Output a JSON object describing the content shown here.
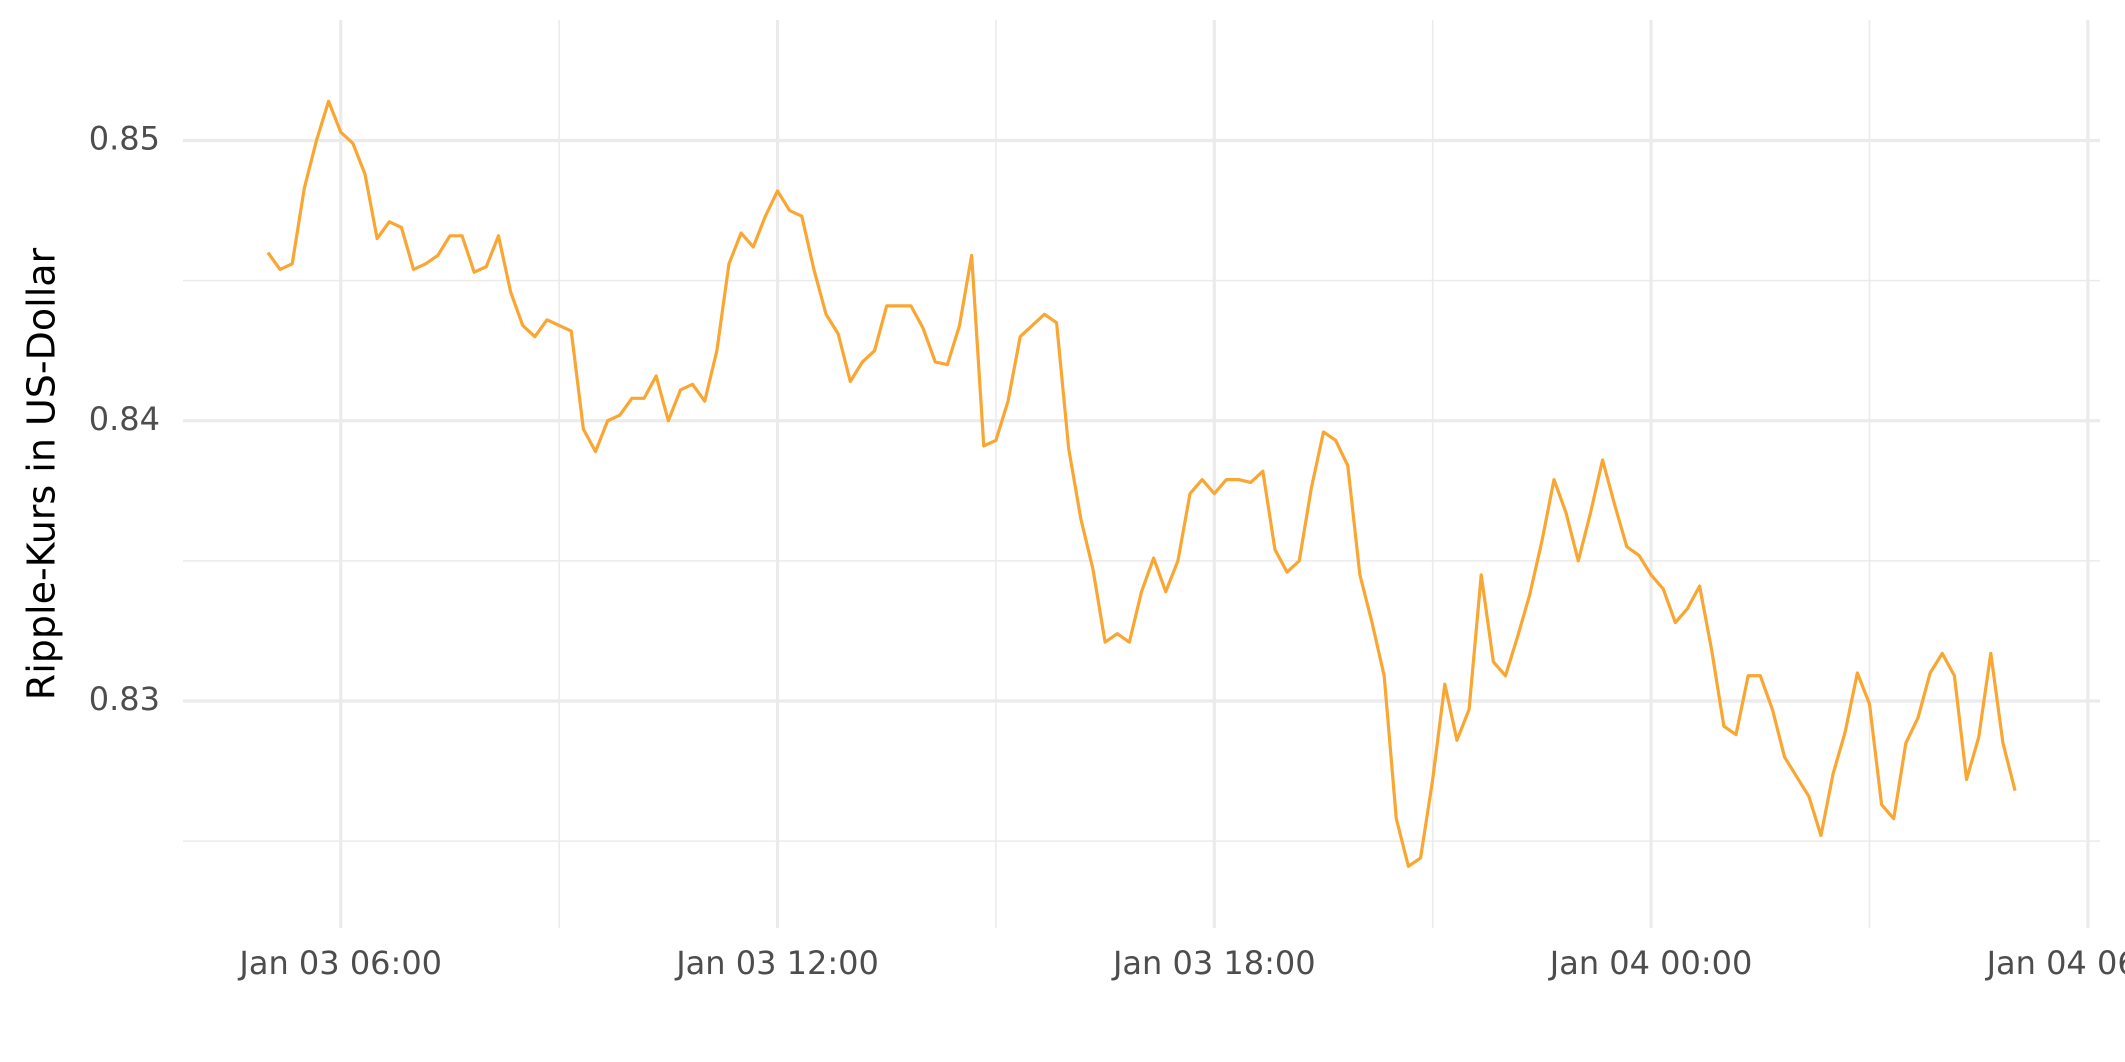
{
  "chart_data": {
    "type": "line",
    "y_label": "Ripple-Kurs in US-Dollar",
    "color": "#f9a632",
    "x": [
      "Jan 03 05:00",
      "Jan 03 05:10",
      "Jan 03 05:20",
      "Jan 03 05:30",
      "Jan 03 05:40",
      "Jan 03 05:50",
      "Jan 03 06:00",
      "Jan 03 06:10",
      "Jan 03 06:20",
      "Jan 03 06:30",
      "Jan 03 06:40",
      "Jan 03 06:50",
      "Jan 03 07:00",
      "Jan 03 07:10",
      "Jan 03 07:20",
      "Jan 03 07:30",
      "Jan 03 07:40",
      "Jan 03 07:50",
      "Jan 03 08:00",
      "Jan 03 08:10",
      "Jan 03 08:20",
      "Jan 03 08:30",
      "Jan 03 08:40",
      "Jan 03 08:50",
      "Jan 03 09:00",
      "Jan 03 09:10",
      "Jan 03 09:20",
      "Jan 03 09:30",
      "Jan 03 09:40",
      "Jan 03 09:50",
      "Jan 03 10:00",
      "Jan 03 10:10",
      "Jan 03 10:20",
      "Jan 03 10:30",
      "Jan 03 10:40",
      "Jan 03 10:50",
      "Jan 03 11:00",
      "Jan 03 11:10",
      "Jan 03 11:20",
      "Jan 03 11:30",
      "Jan 03 11:40",
      "Jan 03 11:50",
      "Jan 03 12:00",
      "Jan 03 12:10",
      "Jan 03 12:20",
      "Jan 03 12:30",
      "Jan 03 12:40",
      "Jan 03 12:50",
      "Jan 03 13:00",
      "Jan 03 13:10",
      "Jan 03 13:20",
      "Jan 03 13:30",
      "Jan 03 13:40",
      "Jan 03 13:50",
      "Jan 03 14:00",
      "Jan 03 14:10",
      "Jan 03 14:20",
      "Jan 03 14:30",
      "Jan 03 14:40",
      "Jan 03 14:50",
      "Jan 03 15:00",
      "Jan 03 15:10",
      "Jan 03 15:20",
      "Jan 03 15:30",
      "Jan 03 15:40",
      "Jan 03 15:50",
      "Jan 03 16:00",
      "Jan 03 16:10",
      "Jan 03 16:20",
      "Jan 03 16:30",
      "Jan 03 16:40",
      "Jan 03 16:50",
      "Jan 03 17:00",
      "Jan 03 17:10",
      "Jan 03 17:20",
      "Jan 03 17:30",
      "Jan 03 17:40",
      "Jan 03 17:50",
      "Jan 03 18:00",
      "Jan 03 18:10",
      "Jan 03 18:20",
      "Jan 03 18:30",
      "Jan 03 18:40",
      "Jan 03 18:50",
      "Jan 03 19:00",
      "Jan 03 19:10",
      "Jan 03 19:20",
      "Jan 03 19:30",
      "Jan 03 19:40",
      "Jan 03 19:50",
      "Jan 03 20:00",
      "Jan 03 20:10",
      "Jan 03 20:20",
      "Jan 03 20:30",
      "Jan 03 20:40",
      "Jan 03 20:50",
      "Jan 03 21:00",
      "Jan 03 21:10",
      "Jan 03 21:20",
      "Jan 03 21:30",
      "Jan 03 21:40",
      "Jan 03 21:50",
      "Jan 03 22:00",
      "Jan 03 22:10",
      "Jan 03 22:20",
      "Jan 03 22:30",
      "Jan 03 22:40",
      "Jan 03 22:50",
      "Jan 03 23:00",
      "Jan 03 23:10",
      "Jan 03 23:20",
      "Jan 03 23:30",
      "Jan 03 23:40",
      "Jan 03 23:50",
      "Jan 04 00:00",
      "Jan 04 00:10",
      "Jan 04 00:20",
      "Jan 04 00:30",
      "Jan 04 00:40",
      "Jan 04 00:50",
      "Jan 04 01:00",
      "Jan 04 01:10",
      "Jan 04 01:20",
      "Jan 04 01:30",
      "Jan 04 01:40",
      "Jan 04 01:50",
      "Jan 04 02:00",
      "Jan 04 02:10",
      "Jan 04 02:20",
      "Jan 04 02:30",
      "Jan 04 02:40",
      "Jan 04 02:50",
      "Jan 04 03:00",
      "Jan 04 03:10",
      "Jan 04 03:20",
      "Jan 04 03:30",
      "Jan 04 03:40",
      "Jan 04 03:50",
      "Jan 04 04:00",
      "Jan 04 04:10",
      "Jan 04 04:20",
      "Jan 04 04:30",
      "Jan 04 04:40",
      "Jan 04 04:50",
      "Jan 04 05:00"
    ],
    "values": [
      0.846,
      0.8454,
      0.8456,
      0.8483,
      0.85,
      0.8514,
      0.8503,
      0.8499,
      0.8488,
      0.8465,
      0.8471,
      0.8469,
      0.8454,
      0.8456,
      0.8459,
      0.8466,
      0.8466,
      0.8453,
      0.8455,
      0.8466,
      0.8446,
      0.8434,
      0.843,
      0.8436,
      0.8434,
      0.8432,
      0.8397,
      0.8389,
      0.84,
      0.8402,
      0.8408,
      0.8408,
      0.8416,
      0.84,
      0.8411,
      0.8413,
      0.8407,
      0.8425,
      0.8456,
      0.8467,
      0.8462,
      0.8473,
      0.8482,
      0.8475,
      0.8473,
      0.8454,
      0.8438,
      0.8431,
      0.8414,
      0.8421,
      0.8425,
      0.8441,
      0.8441,
      0.8441,
      0.8433,
      0.8421,
      0.842,
      0.8434,
      0.8459,
      0.8391,
      0.8393,
      0.8407,
      0.843,
      0.8434,
      0.8438,
      0.8435,
      0.839,
      0.8365,
      0.8347,
      0.8321,
      0.8324,
      0.8321,
      0.8339,
      0.8351,
      0.8339,
      0.835,
      0.8374,
      0.8379,
      0.8374,
      0.8379,
      0.8379,
      0.8378,
      0.8382,
      0.8354,
      0.8346,
      0.835,
      0.8376,
      0.8396,
      0.8393,
      0.8384,
      0.8345,
      0.8328,
      0.8309,
      0.8258,
      0.8241,
      0.8244,
      0.8272,
      0.8306,
      0.8286,
      0.8297,
      0.8345,
      0.8314,
      0.8309,
      0.8323,
      0.8338,
      0.8357,
      0.8379,
      0.8367,
      0.835,
      0.8367,
      0.8386,
      0.837,
      0.8355,
      0.8352,
      0.8345,
      0.834,
      0.8328,
      0.8333,
      0.8341,
      0.8318,
      0.8291,
      0.8288,
      0.8309,
      0.8309,
      0.8297,
      0.828,
      0.8273,
      0.8266,
      0.8252,
      0.8274,
      0.8289,
      0.831,
      0.8299,
      0.8263,
      0.8258,
      0.8285,
      0.8294,
      0.831,
      0.8317,
      0.8309,
      0.8272,
      0.8287,
      0.8317,
      0.8285,
      0.8268
    ],
    "xlim": [
      "Jan 03 03:50",
      "Jan 04 06:10"
    ],
    "xticks": [
      "Jan 03 06:00",
      "Jan 03 12:00",
      "Jan 03 18:00",
      "Jan 04 00:00",
      "Jan 04 06:00"
    ],
    "xminor": [
      "Jan 03 09:00",
      "Jan 03 15:00",
      "Jan 03 21:00",
      "Jan 04 03:00"
    ],
    "ylim": [
      0.8219,
      0.8543
    ],
    "yticks": [
      0.83,
      0.84,
      0.85
    ],
    "yminor": [
      0.825,
      0.835,
      0.845
    ],
    "grid": true
  }
}
